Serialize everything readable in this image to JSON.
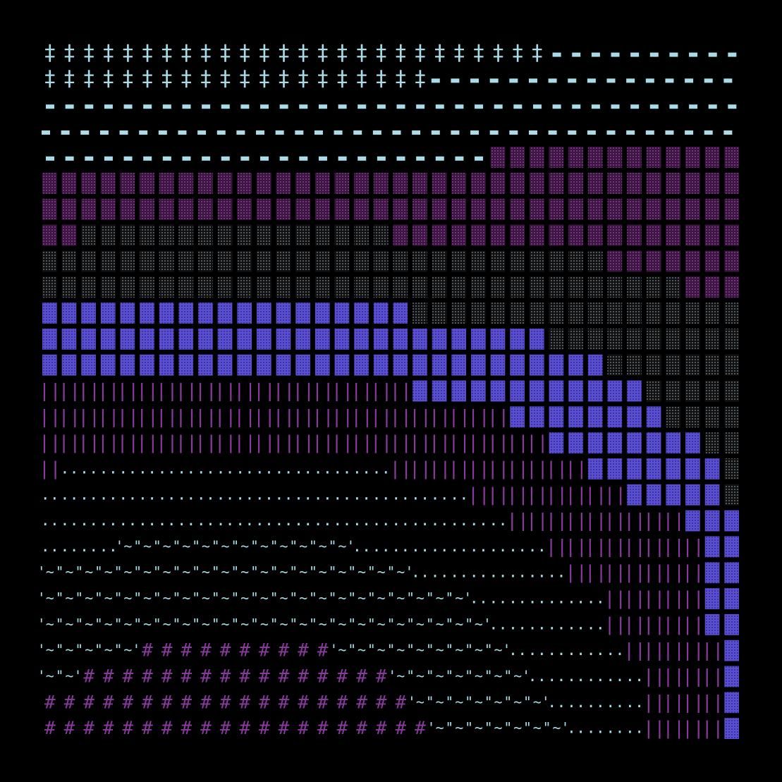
{
  "glyphs": {
    "cross": "‡",
    "bars": "||",
    "dots": "..",
    "wave": "'~'",
    "hash": "#"
  }
}
